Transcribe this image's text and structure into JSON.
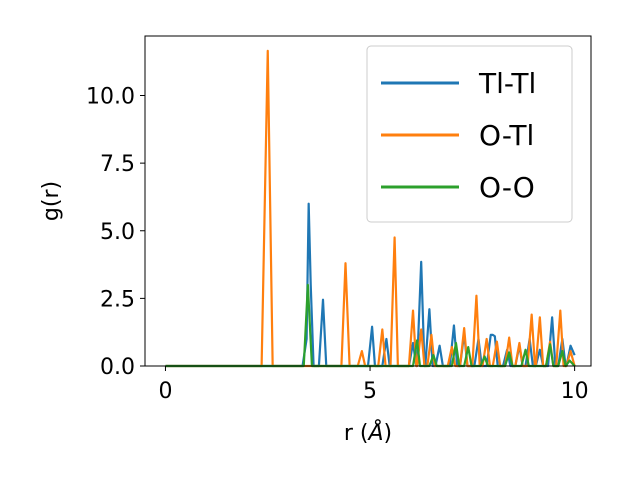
{
  "chart_data": {
    "type": "line",
    "title": "",
    "xlabel": "r (",
    "xlabel_unit": "Å",
    "xlabel_close": ")",
    "ylabel": "g(r)",
    "xlim": [
      -0.5,
      10.4
    ],
    "ylim": [
      0,
      12.2
    ],
    "x_ticks": [
      0,
      5,
      10
    ],
    "x_tick_labels": [
      "0",
      "5",
      "10"
    ],
    "y_ticks": [
      0,
      2.5,
      5,
      7.5,
      10
    ],
    "y_tick_labels": [
      "0.0",
      "2.5",
      "5.0",
      "7.5",
      "10.0"
    ],
    "grid": false,
    "legend_position": "top-right",
    "series": [
      {
        "name": "Tl-Tl",
        "color": "#1f77b4",
        "points": [
          [
            0,
            0
          ],
          [
            3.35,
            0
          ],
          [
            3.45,
            1.0
          ],
          [
            3.5,
            6.0
          ],
          [
            3.55,
            3.0
          ],
          [
            3.62,
            0
          ],
          [
            3.75,
            0
          ],
          [
            3.85,
            2.45
          ],
          [
            3.93,
            0
          ],
          [
            4.4,
            0
          ],
          [
            4.8,
            0
          ],
          [
            4.95,
            0
          ],
          [
            5.05,
            1.45
          ],
          [
            5.12,
            0
          ],
          [
            5.3,
            0
          ],
          [
            5.4,
            1.0
          ],
          [
            5.48,
            0
          ],
          [
            5.95,
            0
          ],
          [
            6.05,
            0.85
          ],
          [
            6.13,
            0
          ],
          [
            6.15,
            0
          ],
          [
            6.25,
            3.85
          ],
          [
            6.33,
            0
          ],
          [
            6.35,
            0
          ],
          [
            6.45,
            2.1
          ],
          [
            6.53,
            0
          ],
          [
            6.6,
            0
          ],
          [
            6.7,
            0.75
          ],
          [
            6.78,
            0
          ],
          [
            6.95,
            0
          ],
          [
            7.05,
            1.5
          ],
          [
            7.13,
            0
          ],
          [
            7.2,
            0
          ],
          [
            7.3,
            1.2
          ],
          [
            7.38,
            0
          ],
          [
            7.55,
            0
          ],
          [
            7.65,
            1.0
          ],
          [
            7.73,
            0
          ],
          [
            7.85,
            0
          ],
          [
            7.95,
            1.15
          ],
          [
            8.0,
            1.15
          ],
          [
            8.05,
            1.1
          ],
          [
            8.12,
            0
          ],
          [
            8.25,
            0
          ],
          [
            8.35,
            0.6
          ],
          [
            8.43,
            0
          ],
          [
            8.55,
            0
          ],
          [
            8.65,
            0.75
          ],
          [
            8.73,
            0
          ],
          [
            8.8,
            0
          ],
          [
            8.9,
            1.0
          ],
          [
            8.98,
            0
          ],
          [
            9.05,
            0
          ],
          [
            9.15,
            0.6
          ],
          [
            9.23,
            0
          ],
          [
            9.35,
            0
          ],
          [
            9.45,
            1.8
          ],
          [
            9.53,
            0
          ],
          [
            9.6,
            0
          ],
          [
            9.7,
            1.0
          ],
          [
            9.78,
            0
          ],
          [
            9.8,
            0
          ],
          [
            9.9,
            0.75
          ],
          [
            10.0,
            0.4
          ]
        ]
      },
      {
        "name": "O-Tl",
        "color": "#ff7f0e",
        "points": [
          [
            0,
            0
          ],
          [
            2.35,
            0
          ],
          [
            2.5,
            11.65
          ],
          [
            2.62,
            0
          ],
          [
            3.4,
            0
          ],
          [
            4.3,
            0
          ],
          [
            4.4,
            3.8
          ],
          [
            4.5,
            0
          ],
          [
            4.7,
            0
          ],
          [
            4.8,
            0.55
          ],
          [
            4.88,
            0
          ],
          [
            5.2,
            0
          ],
          [
            5.3,
            1.35
          ],
          [
            5.38,
            0
          ],
          [
            5.5,
            0
          ],
          [
            5.6,
            4.75
          ],
          [
            5.68,
            0
          ],
          [
            5.95,
            0
          ],
          [
            6.05,
            2.05
          ],
          [
            6.13,
            0
          ],
          [
            6.15,
            0
          ],
          [
            6.25,
            1.35
          ],
          [
            6.33,
            0
          ],
          [
            6.4,
            0
          ],
          [
            6.5,
            1.15
          ],
          [
            6.58,
            0
          ],
          [
            6.9,
            0
          ],
          [
            7.0,
            0.7
          ],
          [
            7.08,
            0
          ],
          [
            7.2,
            0
          ],
          [
            7.3,
            1.4
          ],
          [
            7.38,
            0
          ],
          [
            7.5,
            0
          ],
          [
            7.6,
            2.6
          ],
          [
            7.68,
            0
          ],
          [
            7.75,
            0
          ],
          [
            7.85,
            1.0
          ],
          [
            7.93,
            0
          ],
          [
            8.0,
            0
          ],
          [
            8.1,
            0.9
          ],
          [
            8.18,
            0
          ],
          [
            8.3,
            0
          ],
          [
            8.4,
            1.05
          ],
          [
            8.48,
            0
          ],
          [
            8.55,
            0
          ],
          [
            8.65,
            0.85
          ],
          [
            8.73,
            0
          ],
          [
            8.85,
            0
          ],
          [
            8.95,
            1.9
          ],
          [
            9.03,
            0
          ],
          [
            9.05,
            0
          ],
          [
            9.15,
            1.8
          ],
          [
            9.23,
            0
          ],
          [
            9.3,
            0
          ],
          [
            9.4,
            0.9
          ],
          [
            9.48,
            0
          ],
          [
            9.55,
            0
          ],
          [
            9.65,
            2.05
          ],
          [
            9.73,
            0
          ],
          [
            9.8,
            0
          ],
          [
            9.9,
            0.55
          ],
          [
            10.0,
            0
          ]
        ]
      },
      {
        "name": "O-O",
        "color": "#2ca02c",
        "points": [
          [
            0,
            0
          ],
          [
            3.38,
            0
          ],
          [
            3.48,
            3.0
          ],
          [
            3.58,
            0
          ],
          [
            6.05,
            0
          ],
          [
            6.15,
            0.95
          ],
          [
            6.22,
            0
          ],
          [
            6.45,
            0
          ],
          [
            6.55,
            0.4
          ],
          [
            6.63,
            0
          ],
          [
            7.0,
            0
          ],
          [
            7.1,
            0.85
          ],
          [
            7.18,
            0
          ],
          [
            7.3,
            0
          ],
          [
            7.4,
            0.7
          ],
          [
            7.48,
            0
          ],
          [
            7.7,
            0
          ],
          [
            7.8,
            0.35
          ],
          [
            7.88,
            0
          ],
          [
            8.3,
            0
          ],
          [
            8.4,
            0.5
          ],
          [
            8.48,
            0
          ],
          [
            8.7,
            0
          ],
          [
            8.8,
            0.6
          ],
          [
            8.88,
            0
          ],
          [
            9.3,
            0
          ],
          [
            9.4,
            0.8
          ],
          [
            9.48,
            0
          ],
          [
            9.6,
            0
          ],
          [
            9.7,
            0.55
          ],
          [
            9.78,
            0
          ],
          [
            9.88,
            0.2
          ],
          [
            10.0,
            0
          ]
        ]
      }
    ]
  }
}
